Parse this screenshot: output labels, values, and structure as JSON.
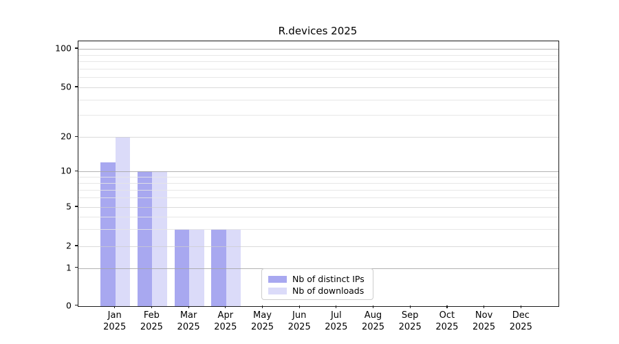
{
  "title": "R.devices 2025",
  "y_axis": {
    "ticks": [
      0,
      1,
      2,
      5,
      10,
      20,
      50,
      100
    ]
  },
  "x_axis": {
    "months": [
      "Jan",
      "Feb",
      "Mar",
      "Apr",
      "May",
      "Jun",
      "Jul",
      "Aug",
      "Sep",
      "Oct",
      "Nov",
      "Dec"
    ],
    "year_label": "2025"
  },
  "legend": {
    "items": [
      {
        "label": "Nb of distinct IPs",
        "color": "#a8a8f0"
      },
      {
        "label": "Nb of downloads",
        "color": "#dbdbf9"
      }
    ]
  },
  "chart_data": {
    "type": "bar",
    "title": "R.devices 2025",
    "categories": [
      "Jan 2025",
      "Feb 2025",
      "Mar 2025",
      "Apr 2025",
      "May 2025",
      "Jun 2025",
      "Jul 2025",
      "Aug 2025",
      "Sep 2025",
      "Oct 2025",
      "Nov 2025",
      "Dec 2025"
    ],
    "series": [
      {
        "name": "Nb of distinct IPs",
        "color": "#a8a8f0",
        "values": [
          12,
          10,
          3,
          3,
          0,
          0,
          0,
          0,
          0,
          0,
          0,
          0
        ]
      },
      {
        "name": "Nb of downloads",
        "color": "#dbdbf9",
        "values": [
          20,
          10,
          3,
          3,
          0,
          0,
          0,
          0,
          0,
          0,
          0,
          0
        ]
      }
    ],
    "xlabel": "",
    "ylabel": "",
    "yscale": "symlog",
    "y_ticks": [
      0,
      1,
      2,
      5,
      10,
      20,
      50,
      100
    ],
    "ylim": [
      0,
      115
    ],
    "grid": true,
    "grid_on_top_of_bars": true,
    "legend_position": "lower center"
  }
}
